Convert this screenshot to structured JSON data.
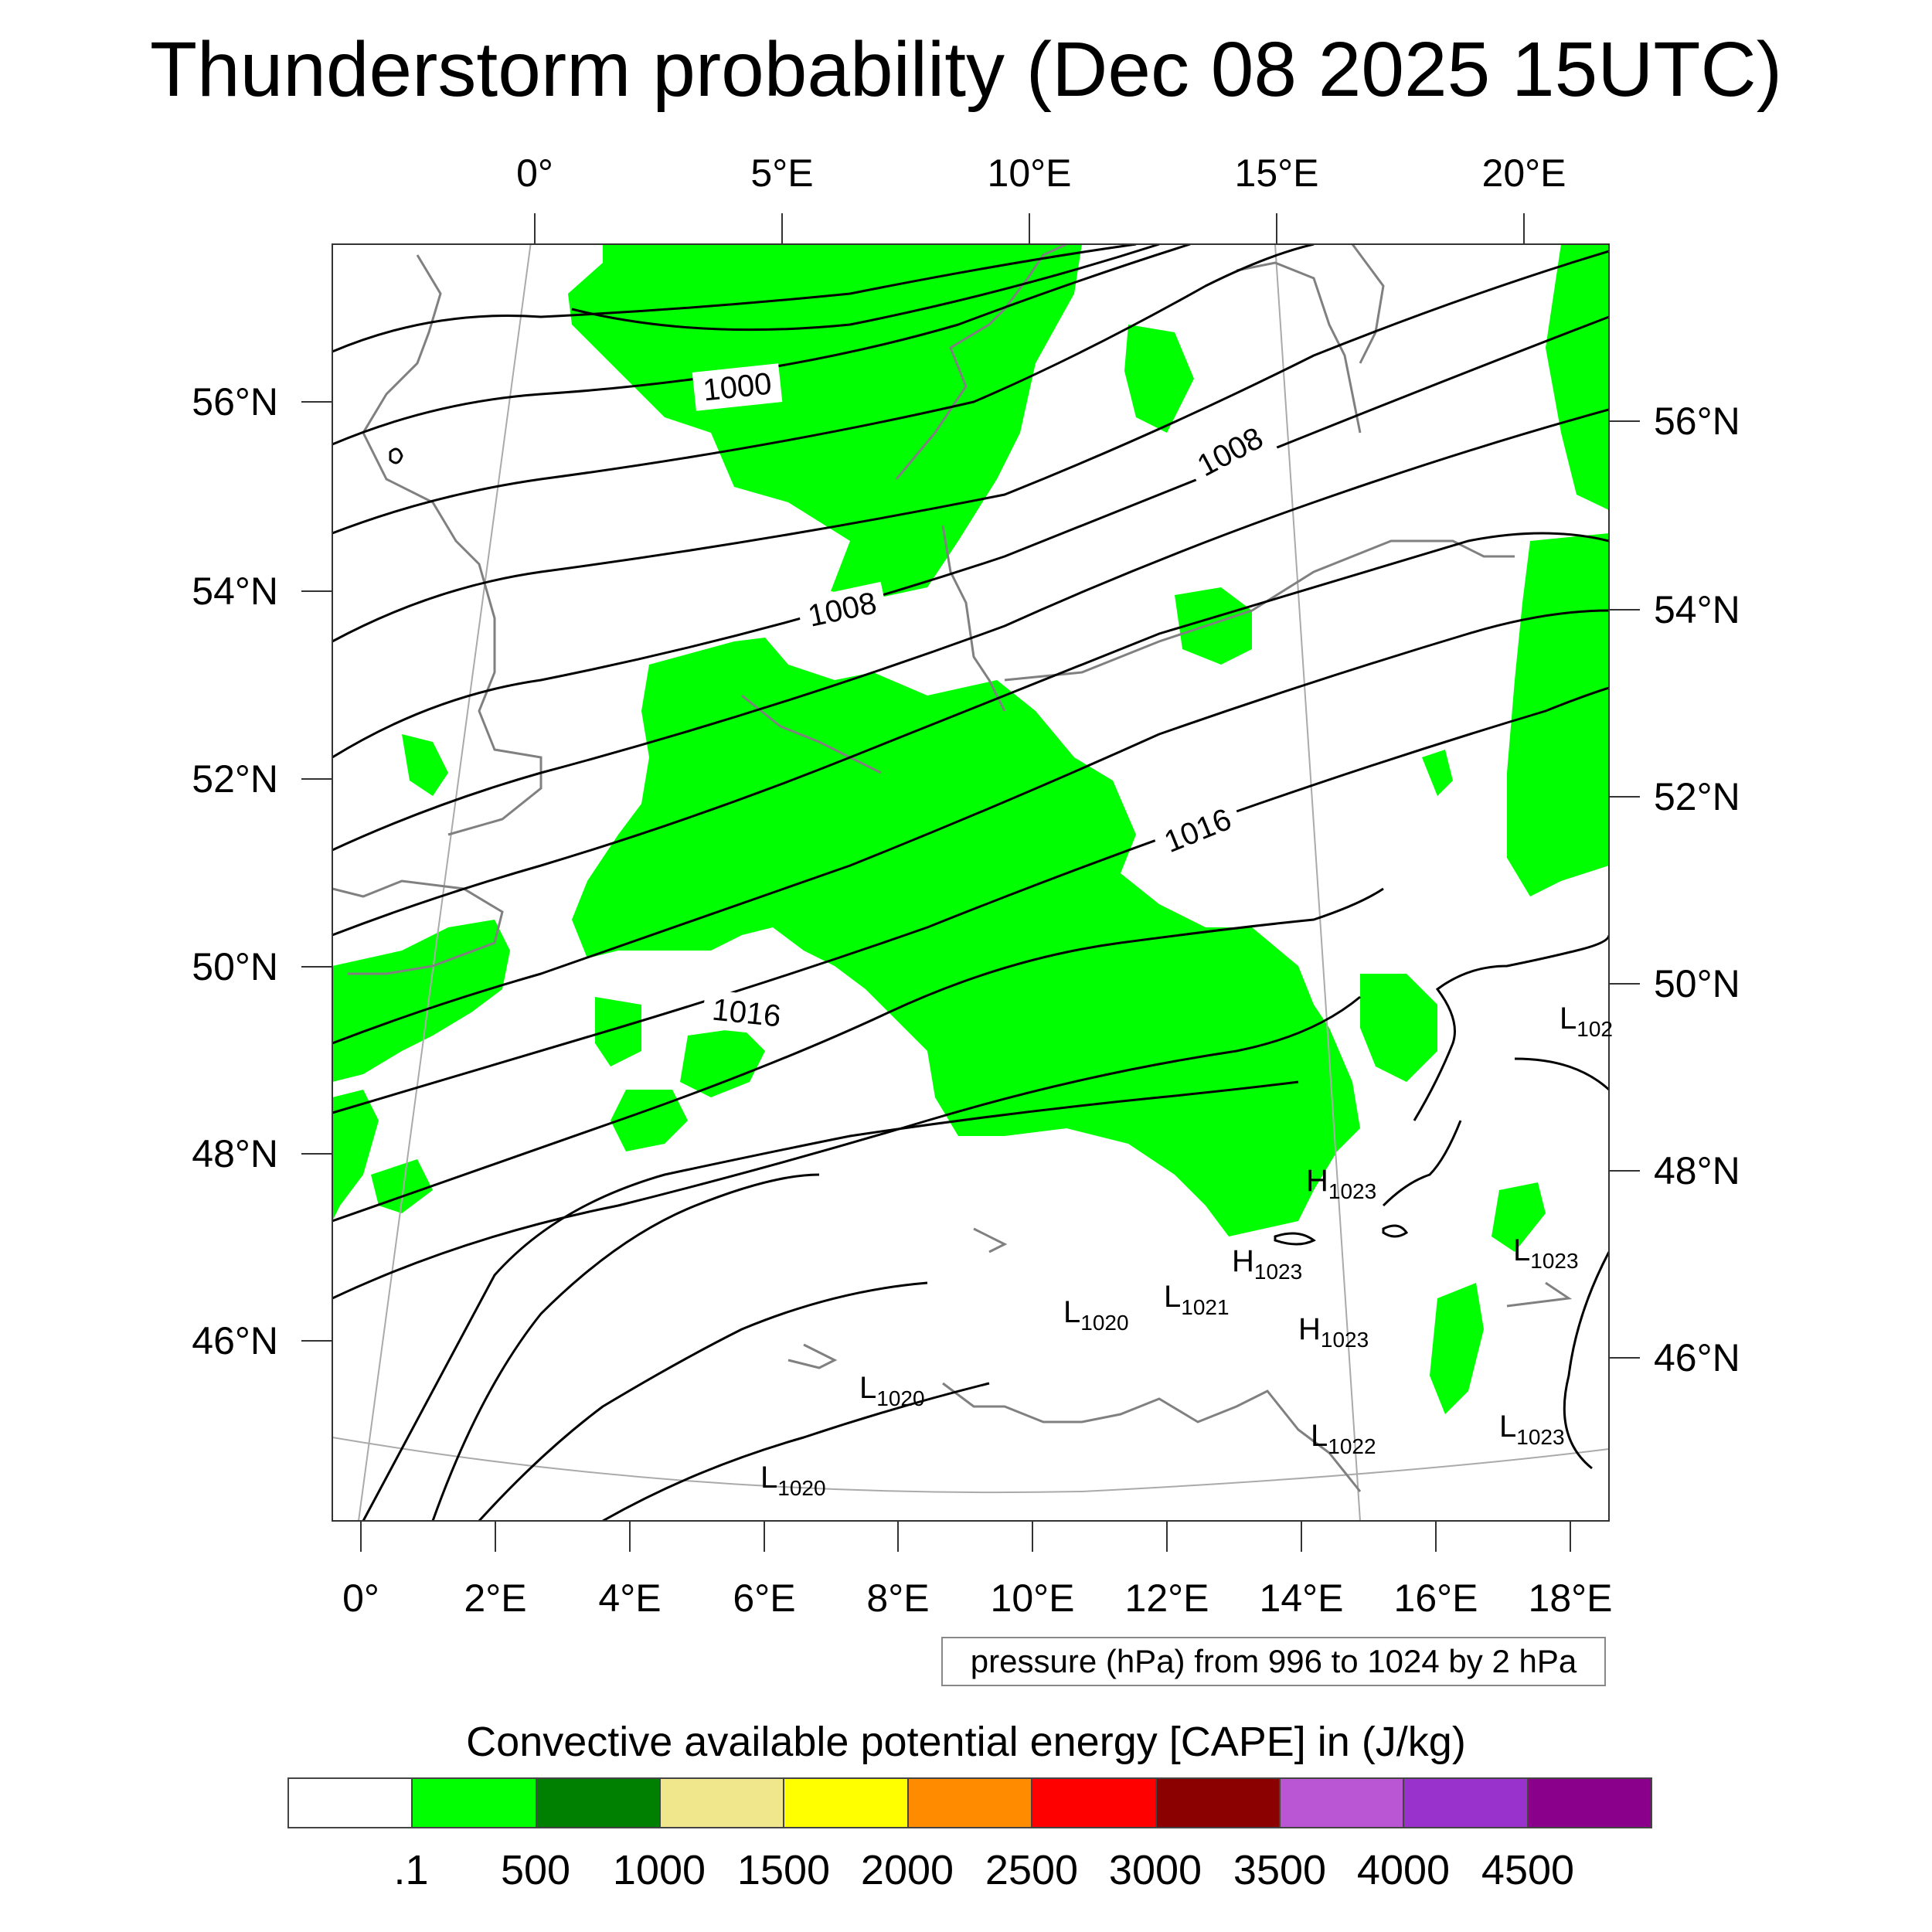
{
  "title": "Thunderstorm probability (Dec 08 2025 15UTC)",
  "lon_top_labels": [
    "0°",
    "5°E",
    "10°E",
    "15°E",
    "20°E"
  ],
  "lon_bottom_labels": [
    "0°",
    "2°E",
    "4°E",
    "6°E",
    "8°E",
    "10°E",
    "12°E",
    "14°E",
    "16°E",
    "18°E"
  ],
  "lat_left_labels": [
    "56°N",
    "54°N",
    "52°N",
    "50°N",
    "48°N",
    "46°N"
  ],
  "lat_right_labels": [
    "56°N",
    "54°N",
    "52°N",
    "50°N",
    "48°N",
    "46°N"
  ],
  "isobar_labels": [
    "1000",
    "1008",
    "1008",
    "1016",
    "1016"
  ],
  "pressure_note": "pressure (hPa) from 996 to 1024 by 2 hPa",
  "pressure_centers": [
    {
      "type": "H",
      "value": "1023"
    },
    {
      "type": "H",
      "value": "1023"
    },
    {
      "type": "H",
      "value": "1023"
    },
    {
      "type": "L",
      "value": "1020"
    },
    {
      "type": "L",
      "value": "1021"
    },
    {
      "type": "L",
      "value": "1020"
    },
    {
      "type": "L",
      "value": "1020"
    },
    {
      "type": "L",
      "value": "1022"
    },
    {
      "type": "L",
      "value": "1023"
    },
    {
      "type": "L",
      "value": "1023"
    },
    {
      "type": "L",
      "value": "102"
    }
  ],
  "colorbar": {
    "title": "Convective available potential energy [CAPE] in (J/kg)",
    "colors": [
      "#ffffff",
      "#00ff00",
      "#008000",
      "#f0e68c",
      "#ffff00",
      "#ff8c00",
      "#ff0000",
      "#8b0000",
      "#ba55d3",
      "#9932cc",
      "#8b008b"
    ],
    "labels": [
      ".1",
      "500",
      "1000",
      "1500",
      "2000",
      "2500",
      "3000",
      "3500",
      "4000",
      "4500"
    ]
  },
  "colors": {
    "cape_fill": "#00ff00",
    "isobar": "#000000",
    "coastline": "#808080",
    "grid": "#aaaaaa"
  }
}
